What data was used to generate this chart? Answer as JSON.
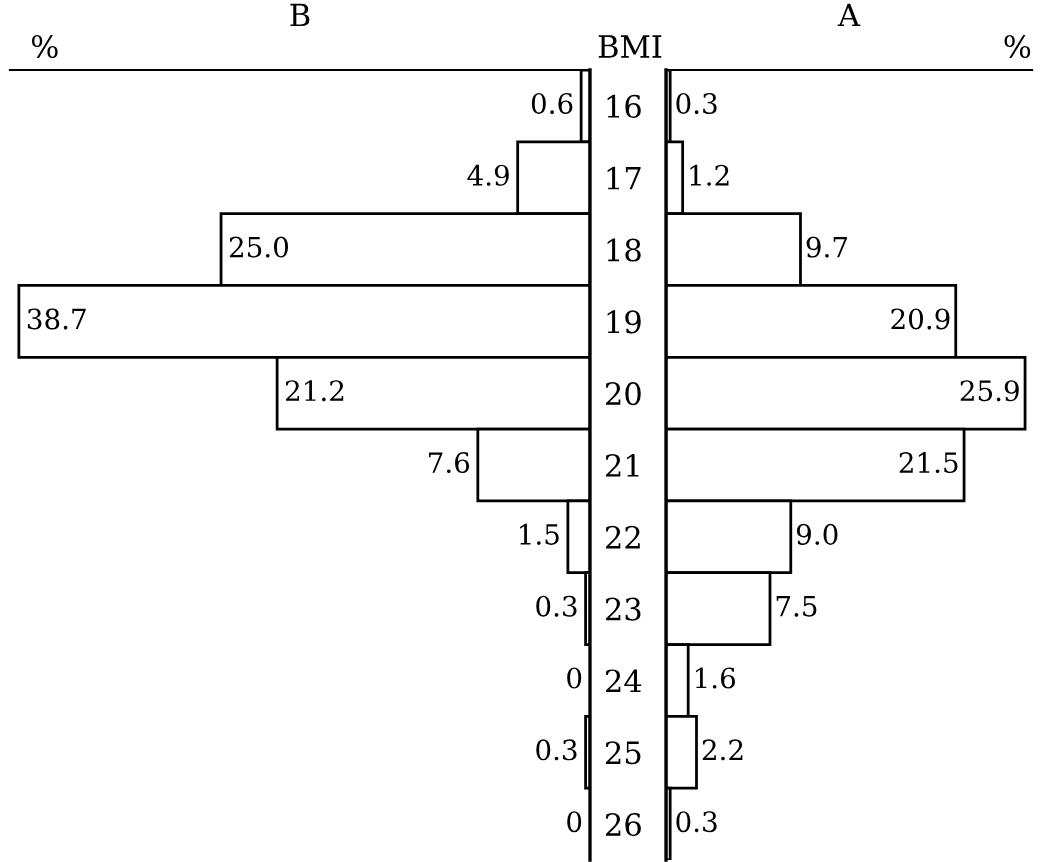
{
  "chart_data": [
    {
      "type": "bar",
      "orientation": "horizontal",
      "title": "B",
      "xlabel": "%",
      "ylabel": "BMI",
      "categories": [
        "16",
        "17",
        "18",
        "19",
        "20",
        "21",
        "22",
        "23",
        "24",
        "25",
        "26"
      ],
      "values": [
        0.6,
        4.9,
        25.0,
        38.7,
        21.2,
        7.6,
        1.5,
        0.3,
        0,
        0.3,
        0
      ],
      "value_labels": [
        "0.6",
        "4.9",
        "25.0",
        "38.7",
        "21.2",
        "7.6",
        "1.5",
        "0.3",
        "0",
        "0.3",
        "0"
      ],
      "color": "#ffffff",
      "xlim": [
        39.3,
        0
      ],
      "tick_labels": "y",
      "grid": false,
      "legend": false
    },
    {
      "type": "bar",
      "orientation": "horizontal",
      "title": "A",
      "xlabel": "%",
      "categories": [
        "16",
        "17",
        "18",
        "19",
        "20",
        "21",
        "22",
        "23",
        "24",
        "25",
        "26"
      ],
      "values": [
        0.3,
        1.2,
        9.7,
        20.9,
        25.9,
        21.5,
        9.0,
        7.5,
        1.6,
        2.2,
        0.3
      ],
      "value_labels": [
        "0.3",
        "1.2",
        "9.7",
        "20.9",
        "25.9",
        "21.5",
        "9.0",
        "7.5",
        "1.6",
        "2.2",
        "0.3"
      ],
      "color": "#ffffff",
      "xlim": [
        0,
        26.4
      ],
      "tick_labels": false,
      "grid": false,
      "legend": false
    }
  ]
}
